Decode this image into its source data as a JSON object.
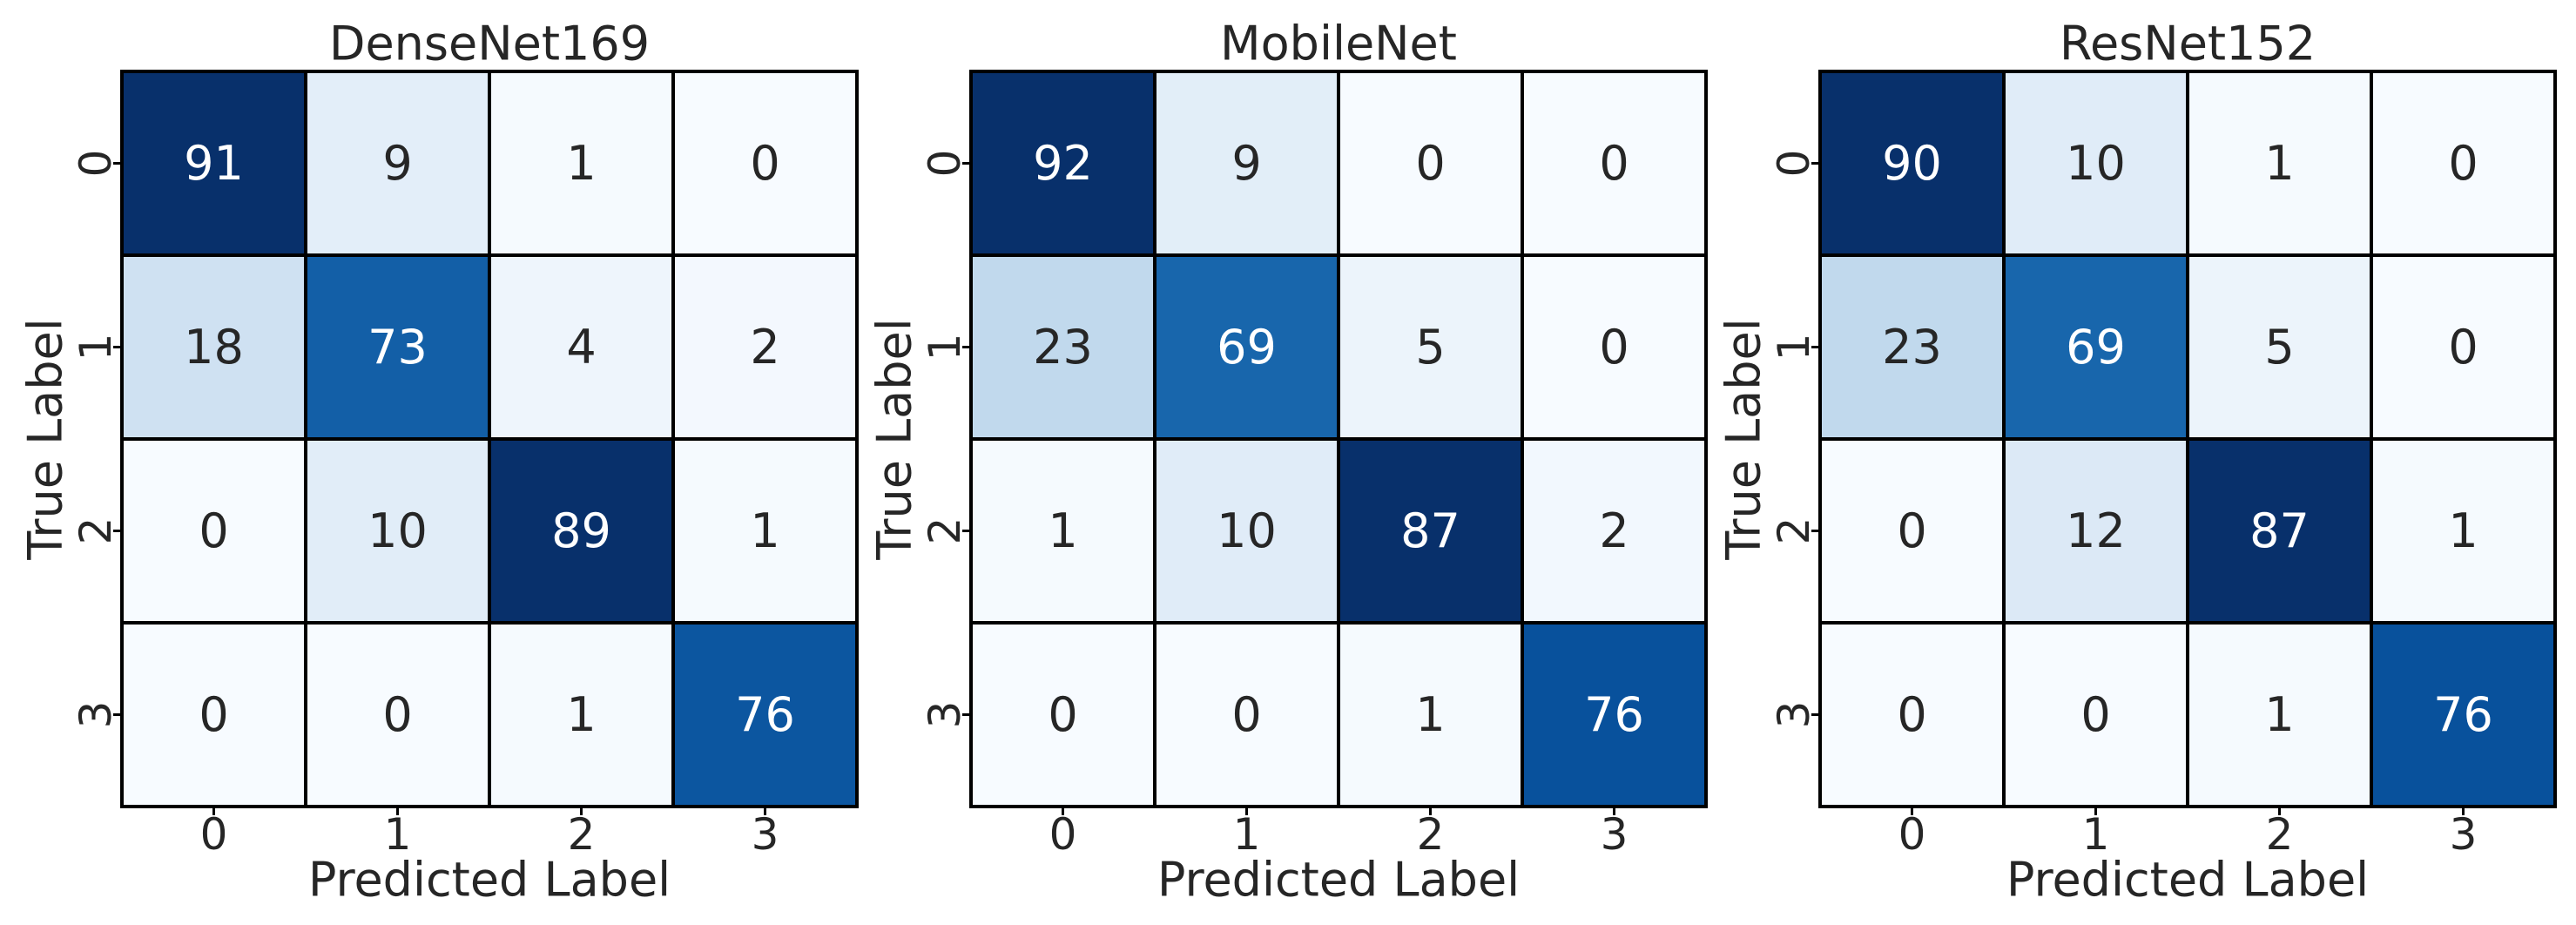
{
  "chart_data": [
    {
      "type": "heatmap",
      "title": "DenseNet169",
      "xlabel": "Predicted Label",
      "ylabel": "True Label",
      "x_tick_labels": [
        "0",
        "1",
        "2",
        "3"
      ],
      "y_tick_labels": [
        "0",
        "1",
        "2",
        "3"
      ],
      "values": [
        [
          91,
          9,
          1,
          0
        ],
        [
          18,
          73,
          4,
          2
        ],
        [
          0,
          10,
          89,
          1
        ],
        [
          0,
          0,
          1,
          76
        ]
      ],
      "colormap": "Blues",
      "color_range": [
        0,
        89
      ]
    },
    {
      "type": "heatmap",
      "title": "MobileNet",
      "xlabel": "Predicted Label",
      "ylabel": "True Label",
      "x_tick_labels": [
        "0",
        "1",
        "2",
        "3"
      ],
      "y_tick_labels": [
        "0",
        "1",
        "2",
        "3"
      ],
      "values": [
        [
          92,
          9,
          0,
          0
        ],
        [
          23,
          69,
          5,
          0
        ],
        [
          1,
          10,
          87,
          2
        ],
        [
          0,
          0,
          1,
          76
        ]
      ],
      "colormap": "Blues",
      "color_range": [
        0,
        87
      ]
    },
    {
      "type": "heatmap",
      "title": "ResNet152",
      "xlabel": "Predicted Label",
      "ylabel": "True Label",
      "x_tick_labels": [
        "0",
        "1",
        "2",
        "3"
      ],
      "y_tick_labels": [
        "0",
        "1",
        "2",
        "3"
      ],
      "values": [
        [
          90,
          10,
          1,
          0
        ],
        [
          23,
          69,
          5,
          0
        ],
        [
          0,
          12,
          87,
          1
        ],
        [
          0,
          0,
          1,
          76
        ]
      ],
      "colormap": "Blues",
      "color_range": [
        0,
        87
      ]
    }
  ],
  "colors": {
    "blues_light": "#f7fbff",
    "blues_dark": "#08306b",
    "grid_line": "#000000",
    "text_dark": "#262626",
    "text_light": "#ffffff"
  }
}
